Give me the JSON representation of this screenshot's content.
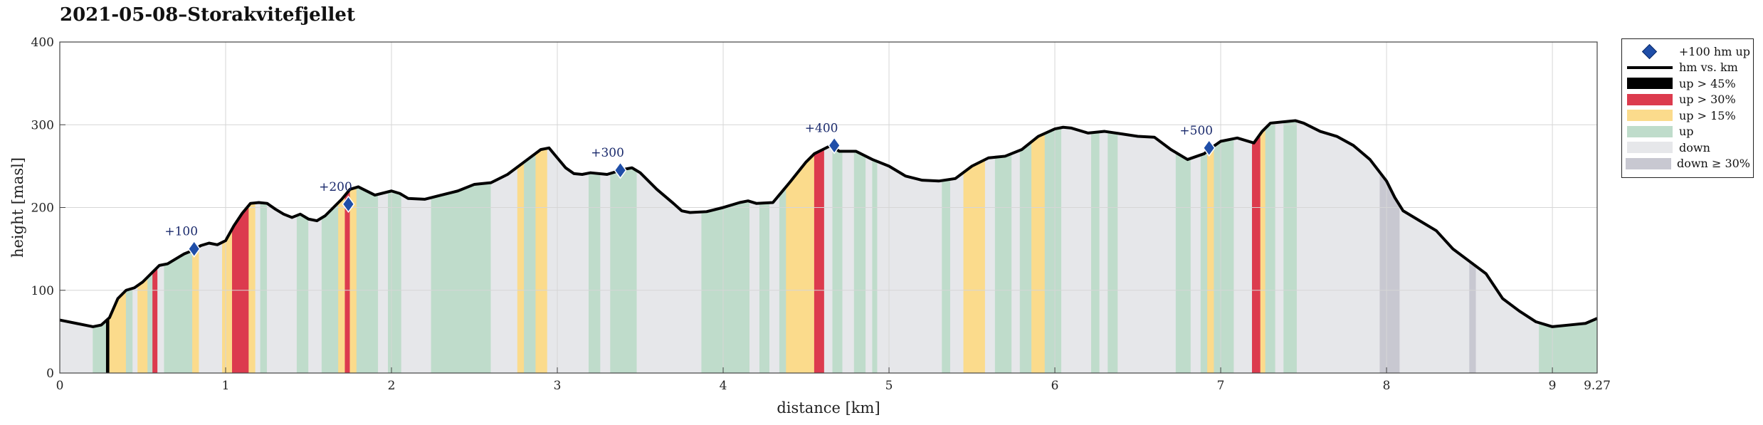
{
  "title": "2021-05-08–Storakvitefjellet",
  "colors": {
    "up45": "#000000",
    "up30": "#dc3b4e",
    "up15": "#fbdb8c",
    "up": "#bfdccb",
    "down": "#e6e7ea",
    "down30": "#c8c8d1",
    "marker": "#1f4ea8",
    "profile": "#000000",
    "grid": "#d6d6d6"
  },
  "legend": [
    {
      "key": "marker",
      "label": "+100 hm up"
    },
    {
      "key": "profile",
      "label": "hm vs. km"
    },
    {
      "key": "up45",
      "label": "up > 45%"
    },
    {
      "key": "up30",
      "label": "up > 30%"
    },
    {
      "key": "up15",
      "label": "up > 15%"
    },
    {
      "key": "up",
      "label": "up"
    },
    {
      "key": "down",
      "label": "down"
    },
    {
      "key": "down30",
      "label": "down ≥ 30%"
    }
  ],
  "chart_data": {
    "type": "area",
    "xlabel": "distance [km]",
    "ylabel": "height [masl]",
    "xlim": [
      0,
      9.27
    ],
    "ylim": [
      0,
      400
    ],
    "xticks": [
      "0",
      "1",
      "2",
      "3",
      "4",
      "5",
      "6",
      "7",
      "8",
      "9",
      "9.27"
    ],
    "xtick_values": [
      0,
      1,
      2,
      3,
      4,
      5,
      6,
      7,
      8,
      9,
      9.27
    ],
    "yticks": [
      "0",
      "100",
      "200",
      "300",
      "400"
    ],
    "ytick_values": [
      0,
      100,
      200,
      300,
      400
    ],
    "grid": true,
    "legend_position": "outside-top-right",
    "series": [
      {
        "name": "hm vs. km",
        "x": [
          0,
          0.1,
          0.2,
          0.25,
          0.3,
          0.35,
          0.4,
          0.45,
          0.5,
          0.55,
          0.6,
          0.65,
          0.7,
          0.75,
          0.8,
          0.85,
          0.9,
          0.95,
          1.0,
          1.05,
          1.1,
          1.15,
          1.2,
          1.25,
          1.3,
          1.35,
          1.4,
          1.45,
          1.5,
          1.55,
          1.6,
          1.65,
          1.7,
          1.75,
          1.8,
          1.9,
          2.0,
          2.05,
          2.1,
          2.2,
          2.3,
          2.4,
          2.5,
          2.6,
          2.7,
          2.8,
          2.9,
          2.95,
          3.0,
          3.05,
          3.1,
          3.15,
          3.2,
          3.3,
          3.4,
          3.45,
          3.5,
          3.6,
          3.7,
          3.75,
          3.8,
          3.9,
          4.0,
          4.1,
          4.15,
          4.2,
          4.3,
          4.35,
          4.4,
          4.5,
          4.55,
          4.6,
          4.65,
          4.7,
          4.8,
          4.9,
          5.0,
          5.1,
          5.2,
          5.3,
          5.4,
          5.5,
          5.6,
          5.7,
          5.8,
          5.9,
          6.0,
          6.05,
          6.1,
          6.2,
          6.3,
          6.4,
          6.5,
          6.6,
          6.7,
          6.8,
          6.9,
          6.95,
          7.0,
          7.1,
          7.2,
          7.25,
          7.3,
          7.4,
          7.45,
          7.5,
          7.6,
          7.7,
          7.8,
          7.9,
          8.0,
          8.05,
          8.1,
          8.2,
          8.3,
          8.4,
          8.5,
          8.6,
          8.7,
          8.8,
          8.9,
          9.0,
          9.1,
          9.2,
          9.27
        ],
        "y": [
          64,
          60,
          56,
          58,
          67,
          90,
          100,
          103,
          110,
          120,
          130,
          132,
          138,
          144,
          148,
          154,
          157,
          155,
          160,
          178,
          193,
          205,
          206,
          205,
          198,
          192,
          188,
          192,
          186,
          184,
          190,
          200,
          210,
          222,
          225,
          215,
          220,
          217,
          211,
          210,
          215,
          220,
          228,
          230,
          240,
          255,
          270,
          272,
          260,
          248,
          241,
          240,
          242,
          240,
          246,
          248,
          242,
          222,
          205,
          196,
          194,
          195,
          200,
          206,
          208,
          205,
          206,
          218,
          230,
          255,
          265,
          270,
          275,
          268,
          268,
          258,
          250,
          238,
          233,
          232,
          235,
          250,
          260,
          262,
          270,
          286,
          295,
          297,
          296,
          290,
          292,
          289,
          286,
          285,
          270,
          258,
          265,
          273,
          280,
          284,
          278,
          292,
          302,
          304,
          305,
          302,
          292,
          286,
          275,
          258,
          232,
          212,
          196,
          184,
          172,
          150,
          135,
          120,
          90,
          75,
          62,
          56,
          58,
          60,
          66
        ],
        "segments": [
          {
            "start": 0.0,
            "end": 0.2,
            "cls": "down"
          },
          {
            "start": 0.2,
            "end": 0.28,
            "cls": "up"
          },
          {
            "start": 0.28,
            "end": 0.3,
            "cls": "up45"
          },
          {
            "start": 0.3,
            "end": 0.4,
            "cls": "up15"
          },
          {
            "start": 0.4,
            "end": 0.44,
            "cls": "up"
          },
          {
            "start": 0.44,
            "end": 0.47,
            "cls": "down"
          },
          {
            "start": 0.47,
            "end": 0.53,
            "cls": "up15"
          },
          {
            "start": 0.53,
            "end": 0.56,
            "cls": "up"
          },
          {
            "start": 0.56,
            "end": 0.59,
            "cls": "up30"
          },
          {
            "start": 0.59,
            "end": 0.63,
            "cls": "down"
          },
          {
            "start": 0.63,
            "end": 0.8,
            "cls": "up"
          },
          {
            "start": 0.8,
            "end": 0.84,
            "cls": "up15"
          },
          {
            "start": 0.84,
            "end": 0.98,
            "cls": "down"
          },
          {
            "start": 0.98,
            "end": 1.04,
            "cls": "up15"
          },
          {
            "start": 1.04,
            "end": 1.14,
            "cls": "up30"
          },
          {
            "start": 1.14,
            "end": 1.18,
            "cls": "up15"
          },
          {
            "start": 1.18,
            "end": 1.21,
            "cls": "down"
          },
          {
            "start": 1.21,
            "end": 1.25,
            "cls": "up"
          },
          {
            "start": 1.25,
            "end": 1.43,
            "cls": "down"
          },
          {
            "start": 1.43,
            "end": 1.5,
            "cls": "up"
          },
          {
            "start": 1.5,
            "end": 1.58,
            "cls": "down"
          },
          {
            "start": 1.58,
            "end": 1.68,
            "cls": "up"
          },
          {
            "start": 1.68,
            "end": 1.72,
            "cls": "up15"
          },
          {
            "start": 1.72,
            "end": 1.75,
            "cls": "up30"
          },
          {
            "start": 1.75,
            "end": 1.79,
            "cls": "up15"
          },
          {
            "start": 1.79,
            "end": 1.92,
            "cls": "up"
          },
          {
            "start": 1.92,
            "end": 1.98,
            "cls": "down"
          },
          {
            "start": 1.98,
            "end": 2.06,
            "cls": "up"
          },
          {
            "start": 2.06,
            "end": 2.24,
            "cls": "down"
          },
          {
            "start": 2.24,
            "end": 2.6,
            "cls": "up"
          },
          {
            "start": 2.6,
            "end": 2.76,
            "cls": "down"
          },
          {
            "start": 2.76,
            "end": 2.8,
            "cls": "up15"
          },
          {
            "start": 2.8,
            "end": 2.87,
            "cls": "up"
          },
          {
            "start": 2.87,
            "end": 2.94,
            "cls": "up15"
          },
          {
            "start": 2.94,
            "end": 3.19,
            "cls": "down"
          },
          {
            "start": 3.19,
            "end": 3.26,
            "cls": "up"
          },
          {
            "start": 3.26,
            "end": 3.32,
            "cls": "down"
          },
          {
            "start": 3.32,
            "end": 3.48,
            "cls": "up"
          },
          {
            "start": 3.48,
            "end": 3.87,
            "cls": "down"
          },
          {
            "start": 3.87,
            "end": 4.16,
            "cls": "up"
          },
          {
            "start": 4.16,
            "end": 4.22,
            "cls": "down"
          },
          {
            "start": 4.22,
            "end": 4.28,
            "cls": "up"
          },
          {
            "start": 4.28,
            "end": 4.34,
            "cls": "down"
          },
          {
            "start": 4.34,
            "end": 4.38,
            "cls": "up"
          },
          {
            "start": 4.38,
            "end": 4.55,
            "cls": "up15"
          },
          {
            "start": 4.55,
            "end": 4.61,
            "cls": "up30"
          },
          {
            "start": 4.61,
            "end": 4.66,
            "cls": "down"
          },
          {
            "start": 4.66,
            "end": 4.72,
            "cls": "up"
          },
          {
            "start": 4.72,
            "end": 4.79,
            "cls": "down"
          },
          {
            "start": 4.79,
            "end": 4.86,
            "cls": "up"
          },
          {
            "start": 4.86,
            "end": 4.9,
            "cls": "down"
          },
          {
            "start": 4.9,
            "end": 4.93,
            "cls": "up"
          },
          {
            "start": 4.93,
            "end": 5.32,
            "cls": "down"
          },
          {
            "start": 5.32,
            "end": 5.37,
            "cls": "up"
          },
          {
            "start": 5.37,
            "end": 5.45,
            "cls": "down"
          },
          {
            "start": 5.45,
            "end": 5.58,
            "cls": "up15"
          },
          {
            "start": 5.58,
            "end": 5.64,
            "cls": "down"
          },
          {
            "start": 5.64,
            "end": 5.74,
            "cls": "up"
          },
          {
            "start": 5.74,
            "end": 5.79,
            "cls": "down"
          },
          {
            "start": 5.79,
            "end": 5.86,
            "cls": "up"
          },
          {
            "start": 5.86,
            "end": 5.94,
            "cls": "up15"
          },
          {
            "start": 5.94,
            "end": 6.04,
            "cls": "up"
          },
          {
            "start": 6.04,
            "end": 6.22,
            "cls": "down"
          },
          {
            "start": 6.22,
            "end": 6.27,
            "cls": "up"
          },
          {
            "start": 6.27,
            "end": 6.32,
            "cls": "down"
          },
          {
            "start": 6.32,
            "end": 6.38,
            "cls": "up"
          },
          {
            "start": 6.38,
            "end": 6.73,
            "cls": "down"
          },
          {
            "start": 6.73,
            "end": 6.82,
            "cls": "up"
          },
          {
            "start": 6.82,
            "end": 6.88,
            "cls": "down"
          },
          {
            "start": 6.88,
            "end": 6.92,
            "cls": "up"
          },
          {
            "start": 6.92,
            "end": 6.96,
            "cls": "up15"
          },
          {
            "start": 6.96,
            "end": 7.08,
            "cls": "up"
          },
          {
            "start": 7.08,
            "end": 7.19,
            "cls": "down"
          },
          {
            "start": 7.19,
            "end": 7.24,
            "cls": "up30"
          },
          {
            "start": 7.24,
            "end": 7.27,
            "cls": "up15"
          },
          {
            "start": 7.27,
            "end": 7.33,
            "cls": "up"
          },
          {
            "start": 7.33,
            "end": 7.38,
            "cls": "down"
          },
          {
            "start": 7.38,
            "end": 7.46,
            "cls": "up"
          },
          {
            "start": 7.46,
            "end": 7.96,
            "cls": "down"
          },
          {
            "start": 7.96,
            "end": 8.08,
            "cls": "down30"
          },
          {
            "start": 8.08,
            "end": 8.5,
            "cls": "down"
          },
          {
            "start": 8.5,
            "end": 8.54,
            "cls": "down30"
          },
          {
            "start": 8.54,
            "end": 8.92,
            "cls": "down"
          },
          {
            "start": 8.92,
            "end": 9.27,
            "cls": "up"
          }
        ]
      }
    ],
    "markers": [
      {
        "label": "+100",
        "x": 0.81,
        "y": 150
      },
      {
        "label": "+200",
        "x": 1.74,
        "y": 204
      },
      {
        "label": "+300",
        "x": 3.38,
        "y": 245
      },
      {
        "label": "+400",
        "x": 4.67,
        "y": 275
      },
      {
        "label": "+500",
        "x": 6.93,
        "y": 272
      }
    ]
  }
}
